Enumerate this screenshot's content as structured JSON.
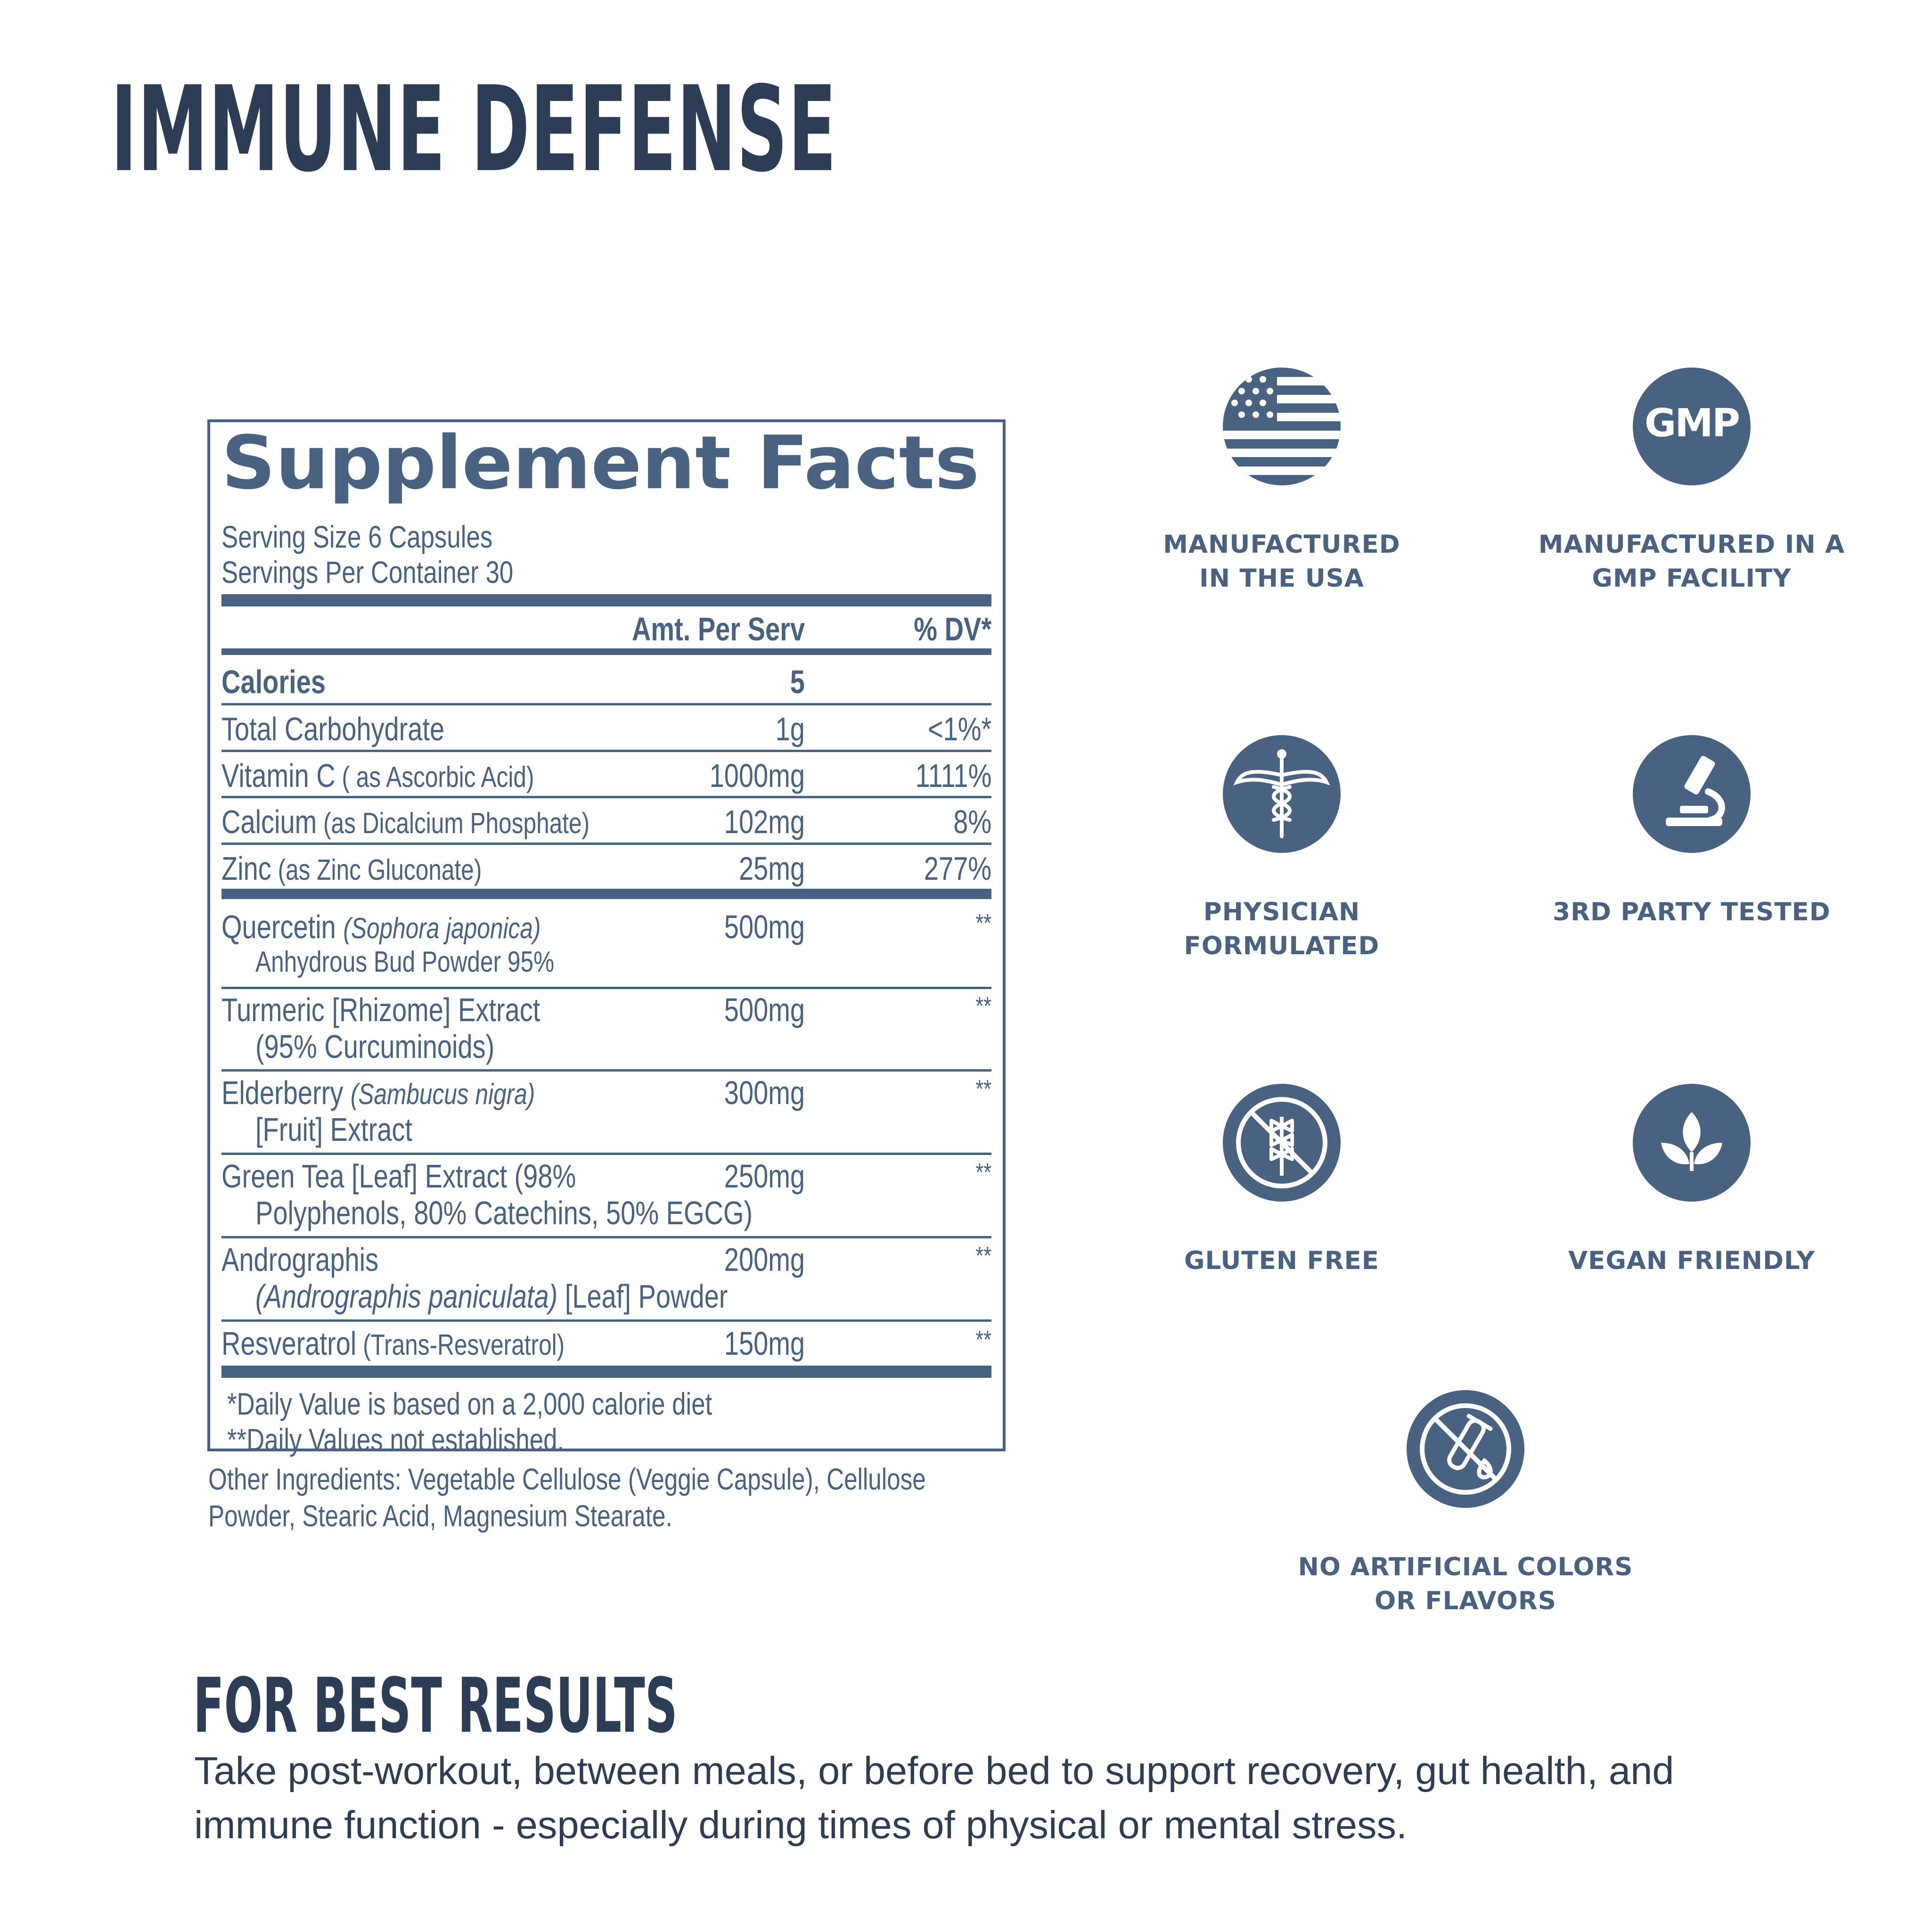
{
  "title": "IMMUNE DEFENSE",
  "facts": {
    "heading": "Supplement Facts",
    "serving_size": "Serving Size 6 Capsules",
    "servings_per_container": "Servings Per Container 30",
    "col_amount": "Amt. Per Serv",
    "col_dv": "% DV*",
    "rows": [
      {
        "name": "Calories",
        "sub": "",
        "amount": "5",
        "dv": ""
      },
      {
        "name": "Total Carbohydrate",
        "sub": "",
        "amount": "1g",
        "dv": "<1%*"
      },
      {
        "name": "Vitamin C",
        "sub": " ( as Ascorbic Acid)",
        "amount": "1000mg",
        "dv": "1111%"
      },
      {
        "name": "Calcium",
        "sub": " (as Dicalcium Phosphate)",
        "amount": "102mg",
        "dv": "8%"
      },
      {
        "name": "Zinc",
        "sub": " (as Zinc Gluconate)",
        "amount": "25mg",
        "dv": "277%"
      }
    ],
    "botanicals": [
      {
        "line1": "Quercetin ",
        "line1_italic": "(Sophora japonica)",
        "line1_rest": "",
        "line2_italic": "",
        "line2": "Anhydrous Bud Powder 95%",
        "amount": "500mg",
        "dv": "**"
      },
      {
        "line1": "Turmeric [Rhizome] Extract",
        "line1_italic": "",
        "line1_rest": "",
        "line2_italic": "",
        "line2": "(95% Curcuminoids)",
        "amount": "500mg",
        "dv": "**"
      },
      {
        "line1": "Elderberry ",
        "line1_italic": "(Sambucus nigra)",
        "line1_rest": "",
        "line2_italic": "",
        "line2": "[Fruit] Extract",
        "amount": "300mg",
        "dv": "**"
      },
      {
        "line1": "Green Tea [Leaf] Extract (98%",
        "line1_italic": "",
        "line1_rest": "",
        "line2_italic": "",
        "line2": "Polyphenols, 80% Catechins, 50% EGCG)",
        "amount": "250mg",
        "dv": "**"
      },
      {
        "line1": "Andrographis",
        "line1_italic": "",
        "line1_rest": "",
        "line2_italic": "(Andrographis paniculata)",
        "line2": " [Leaf] Powder",
        "amount": "200mg",
        "dv": "**"
      },
      {
        "line1": "Resveratrol",
        "line1_italic": "",
        "line1_rest": " (Trans-Resveratrol)",
        "line2_italic": "",
        "line2": "",
        "amount": "150mg",
        "dv": "**"
      }
    ],
    "footnote1": "*Daily Value is based on a 2,000 calorie diet",
    "footnote2": "**Daily Values not established."
  },
  "other_ingredients": {
    "line1": "Other Ingredients: Vegetable Cellulose (Veggie Capsule), Cellulose",
    "line2": "Powder, Stearic Acid, Magnesium Stearate."
  },
  "badges": [
    {
      "icon": "usa-flag-icon",
      "lines": [
        "MANUFACTURED",
        "IN THE USA"
      ]
    },
    {
      "icon": "gmp-icon",
      "text": "GMP",
      "lines": [
        "MANUFACTURED IN A",
        "GMP FACILITY"
      ]
    },
    {
      "icon": "caduceus-icon",
      "lines": [
        "PHYSICIAN",
        "FORMULATED"
      ]
    },
    {
      "icon": "microscope-icon",
      "lines": [
        "3RD PARTY TESTED"
      ]
    },
    {
      "icon": "no-wheat-icon",
      "lines": [
        "GLUTEN FREE"
      ]
    },
    {
      "icon": "leaf-icon",
      "lines": [
        "VEGAN FRIENDLY"
      ]
    },
    {
      "icon": "no-test-tube-icon",
      "lines": [
        "NO ARTIFICIAL COLORS",
        "OR FLAVORS"
      ]
    }
  ],
  "best_results": {
    "title": "FOR BEST RESULTS",
    "line1": "Take post-workout, between meals, or before bed to support recovery, gut health, and",
    "line2": "immune function - especially during times of physical or mental stress."
  },
  "colors": {
    "navy": "#2c3d55",
    "slate_blue": "#4a6282",
    "background": "#ffffff"
  }
}
